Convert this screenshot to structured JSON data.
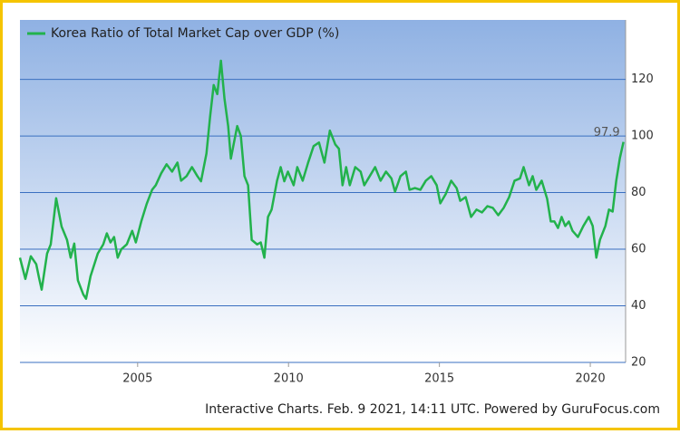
{
  "chart_data": {
    "type": "line",
    "series": [
      {
        "name": "Korea Ratio of Total Market Cap over GDP (%)",
        "color": "#22b24c",
        "x": [
          2001.1,
          2001.28,
          2001.46,
          2001.64,
          2001.73,
          2001.82,
          2002.0,
          2002.12,
          2002.3,
          2002.48,
          2002.66,
          2002.78,
          2002.9,
          2003.02,
          2003.2,
          2003.29,
          2003.44,
          2003.68,
          2003.86,
          2003.98,
          2004.1,
          2004.22,
          2004.34,
          2004.46,
          2004.64,
          2004.82,
          2004.94,
          2005.12,
          2005.3,
          2005.48,
          2005.6,
          2005.78,
          2005.96,
          2006.14,
          2006.32,
          2006.44,
          2006.62,
          2006.8,
          2006.98,
          2007.1,
          2007.28,
          2007.4,
          2007.52,
          2007.64,
          2007.76,
          2007.88,
          2008.0,
          2008.09,
          2008.18,
          2008.3,
          2008.42,
          2008.54,
          2008.66,
          2008.78,
          2008.96,
          2009.08,
          2009.2,
          2009.32,
          2009.44,
          2009.62,
          2009.74,
          2009.86,
          2009.98,
          2010.17,
          2010.29,
          2010.47,
          2010.65,
          2010.83,
          2011.01,
          2011.19,
          2011.37,
          2011.55,
          2011.67,
          2011.79,
          2011.91,
          2012.03,
          2012.21,
          2012.39,
          2012.51,
          2012.69,
          2012.87,
          2013.05,
          2013.23,
          2013.41,
          2013.53,
          2013.71,
          2013.89,
          2014.01,
          2014.19,
          2014.37,
          2014.55,
          2014.73,
          2014.91,
          2015.03,
          2015.21,
          2015.39,
          2015.57,
          2015.69,
          2015.87,
          2016.05,
          2016.23,
          2016.41,
          2016.59,
          2016.77,
          2016.95,
          2017.13,
          2017.31,
          2017.49,
          2017.67,
          2017.79,
          2017.97,
          2018.09,
          2018.21,
          2018.39,
          2018.57,
          2018.69,
          2018.81,
          2018.93,
          2019.05,
          2019.17,
          2019.29,
          2019.41,
          2019.59,
          2019.77,
          2019.95,
          2020.08,
          2020.2,
          2020.32,
          2020.5,
          2020.62,
          2020.74,
          2020.86,
          2020.98,
          2021.1
        ],
        "values": [
          57,
          49.5,
          57.5,
          54.7,
          50,
          45.7,
          58.5,
          61.7,
          78,
          68,
          63.3,
          57,
          62,
          49,
          44,
          42.5,
          50.5,
          58.5,
          61.7,
          65.6,
          62.4,
          64.3,
          57,
          60,
          61.7,
          66.5,
          62.4,
          69.8,
          76,
          81,
          82.6,
          86.8,
          90,
          87.4,
          90.6,
          84.2,
          85.8,
          89,
          85.8,
          84,
          93.8,
          106.7,
          118,
          114.8,
          126.6,
          113,
          103.5,
          92,
          97,
          103.5,
          100,
          85.8,
          82.6,
          63.3,
          61.7,
          62.4,
          57,
          71.4,
          74,
          84.2,
          89,
          84,
          87.4,
          82.6,
          89,
          84.2,
          90.6,
          96.4,
          97.7,
          90.6,
          101.9,
          97,
          95.5,
          82.6,
          89,
          82.6,
          89,
          87.4,
          82.6,
          85.8,
          89,
          84.2,
          87.4,
          85,
          80.3,
          85.8,
          87.4,
          81,
          81.6,
          81,
          84.2,
          85.8,
          82.6,
          76.2,
          79.5,
          84.2,
          81.6,
          77.1,
          78.4,
          71.4,
          74,
          73,
          75.2,
          74.6,
          72,
          74.6,
          78.4,
          84.2,
          85,
          89,
          82.6,
          85.8,
          81,
          84.2,
          77.8,
          69.8,
          69.8,
          67.5,
          71.4,
          68.2,
          69.8,
          66.5,
          64.3,
          68.2,
          71.4,
          68.2,
          57,
          63.3,
          68.2,
          74,
          73.3,
          84.2,
          92.2,
          97.9
        ]
      }
    ],
    "xlim": [
      2001.1,
      2021.17
    ],
    "xticks": [
      2005,
      2010,
      2015,
      2020
    ],
    "ylim": [
      20,
      141
    ],
    "yticks": [
      20,
      40,
      60,
      80,
      100,
      120
    ],
    "grid": true,
    "footer": "Interactive Charts. Feb. 9 2021, 14:11 UTC. Powered by GuruFocus.com"
  }
}
